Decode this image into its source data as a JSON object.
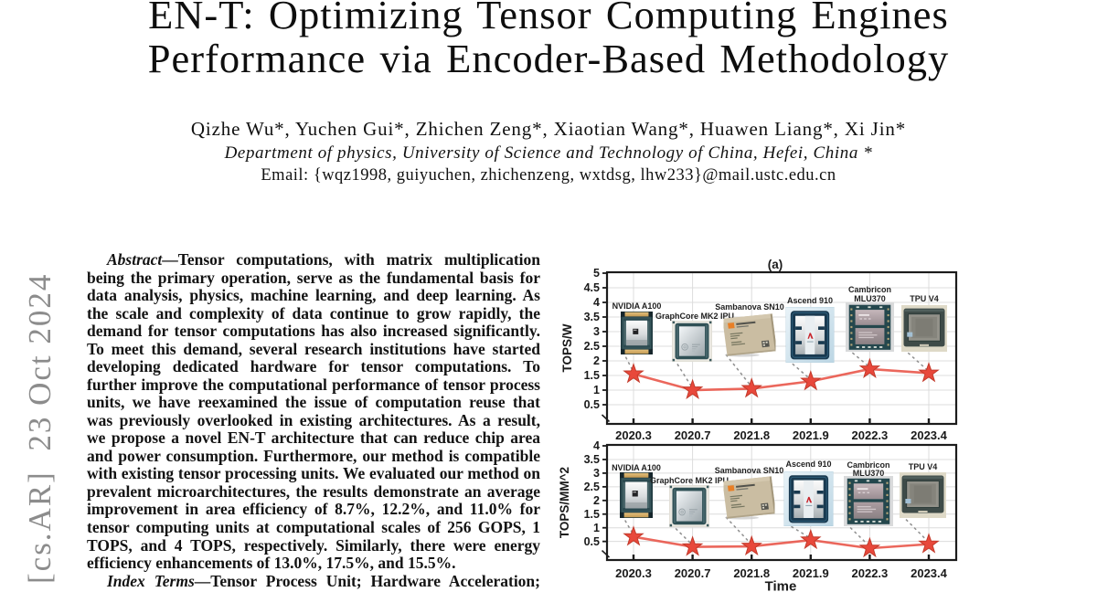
{
  "stamp": {
    "text": "[cs.AR]  23 Oct 2024"
  },
  "header": {
    "title_line1": "EN-T: Optimizing Tensor Computing Engines",
    "title_line2": "Performance via Encoder-Based Methodology",
    "authors": "Qizhe Wu*, Yuchen Gui*, Zhichen Zeng*, Xiaotian Wang*, Huawen Liang*, Xi Jin*",
    "affiliation": "Department of physics, University of Science and Technology of China, Hefei, China *",
    "email": "Email: {wqz1998, guiyuchen, zhichenzeng, wxtdsg, lhw233}@mail.ustc.edu.cn"
  },
  "abstract": {
    "lead": "Abstract",
    "first_line_rest": "—Tensor computations, with matrix multiplication",
    "lines": [
      "being the primary operation, serve as the fundamental basis for",
      "data analysis, physics, machine learning, and deep learning. As",
      "the scale and complexity of data continue to grow rapidly, the",
      "demand for tensor computations has also increased significantly.",
      "To meet this demand, several research institutions have started",
      "developing dedicated hardware for tensor computations. To",
      "further improve the computational performance of tensor process",
      "units, we have reexamined the issue of computation reuse that",
      "was previously overlooked in existing architectures. As a result,",
      "we propose a novel EN-T architecture that can reduce chip area",
      "and power consumption. Furthermore, our method is compatible",
      "with existing tensor processing units. We evaluated our method on",
      "prevalent microarchitectures, the results demonstrate an average",
      "improvement in area efficiency of 8.7%, 12.2%, and 11.0% for",
      "tensor computing units at computational scales of 256 GOPS, 1",
      "TOPS, and 4 TOPS, respectively. Similarly, there were energy"
    ],
    "last_line": "efficiency enhancements of 13.0%, 17.5%, and 15.5%.",
    "index_lead": "Index Terms",
    "index_rest": "—Tensor Process Unit; Hardware Acceleration;"
  },
  "chart_data": [
    {
      "type": "line",
      "panel_label": "(a)",
      "ylabel": "TOPS/W",
      "x": [
        "2020.3",
        "2020.7",
        "2021.8",
        "2021.9",
        "2022.3",
        "2023.4"
      ],
      "series": [
        {
          "name": "TOPS/W",
          "values": [
            1.55,
            1.0,
            1.05,
            1.3,
            1.72,
            1.58
          ]
        }
      ],
      "ylim": [
        0,
        5
      ],
      "ytick_step": 0.5,
      "grid": true,
      "marker": "star",
      "marker_color": "#e8483b",
      "line_color": "#e9564a",
      "annotations": [
        [
          "NVIDIA A100"
        ],
        [
          "GraphCore MK2 IPU"
        ],
        [
          "Sambanova SN10"
        ],
        [
          "Ascend 910"
        ],
        [
          "Cambricon",
          "MLU370"
        ],
        [
          "TPU V4"
        ]
      ]
    },
    {
      "type": "line",
      "ylabel": "TOPS/MM^2",
      "xlabel": "Time",
      "x": [
        "2020.3",
        "2020.7",
        "2021.8",
        "2021.9",
        "2022.3",
        "2023.4"
      ],
      "series": [
        {
          "name": "TOPS/MM^2",
          "values": [
            0.67,
            0.3,
            0.32,
            0.55,
            0.25,
            0.4
          ]
        }
      ],
      "ylim": [
        0,
        4
      ],
      "ytick_step": 0.5,
      "grid": true,
      "marker": "star",
      "marker_color": "#e8483b",
      "line_color": "#e9564a",
      "annotations": [
        [
          "NVIDIA A100"
        ],
        [
          "GraphCore MK2 IPU"
        ],
        [
          "Sambanova SN10"
        ],
        [
          "Ascend 910"
        ],
        [
          "Cambricon",
          "MLU370"
        ],
        [
          "TPU V4"
        ]
      ]
    }
  ]
}
